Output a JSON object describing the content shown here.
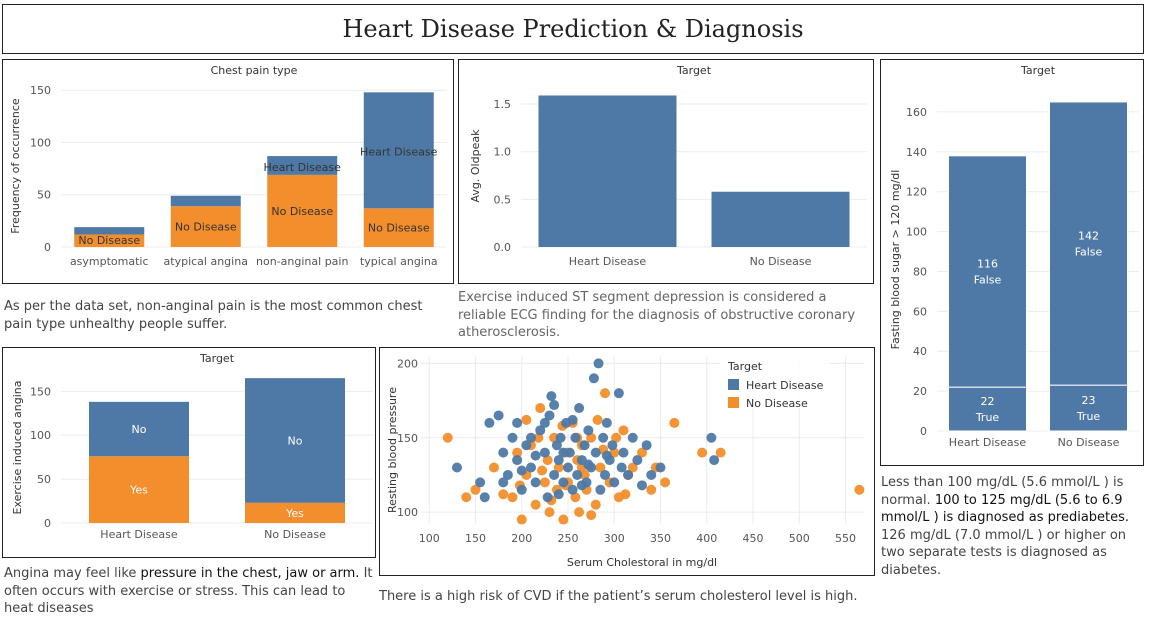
{
  "page": {
    "title": "Heart Disease Prediction & Diagnosis"
  },
  "colors": {
    "heart_disease": "#4e79a7",
    "no_disease": "#f28e2b",
    "grid": "#ececec",
    "axis_text": "#555555"
  },
  "captions": {
    "chest_pain": "As per the data set, non-anginal pain is the most common chest pain type unhealthy people suffer.",
    "oldpeak": "Exercise induced ST segment depression is considered a reliable ECG finding for the diagnosis of obstructive coronary atherosclerosis.",
    "angina_pre": "Angina may feel like ",
    "angina_bold": "pressure in the chest, jaw or arm.",
    "angina_post": " It often occurs with exercise or stress. This can lead to heat diseases",
    "cholesterol": "There is a high risk of CVD if the patient’s serum cholesterol level is high.",
    "sugar_1": "Less than 100 mg/dL (5.6 mmol/L ) is normal. ",
    "sugar_2": "100 to 125 mg/dL (5.6 to 6.9 mmol/L ) is diagnosed as prediabetes.",
    "sugar_3": " 126 mg/dL (7.0 mmol/L ) or higher on two separate tests is diagnosed as diabetes."
  },
  "chart_data": [
    {
      "id": "chest_pain",
      "type": "bar",
      "stacked": true,
      "title": "Chest pain type",
      "ylabel": "Frequency of occurrence",
      "xlabel": "",
      "categories": [
        "asymptomatic",
        "atypical angina",
        "non-anginal pain",
        "typical angina"
      ],
      "series": [
        {
          "name": "No Disease",
          "values": [
            12,
            39,
            69,
            37
          ],
          "labels": [
            "No Disease",
            "No Disease",
            "No Disease",
            "No Disease"
          ]
        },
        {
          "name": "Heart Disease",
          "values": [
            7,
            10,
            18,
            111
          ],
          "labels": [
            "",
            "",
            "Heart Disease",
            "Heart Disease"
          ]
        }
      ],
      "yticks": [
        0,
        50,
        100,
        150
      ],
      "ylim": [
        0,
        155
      ],
      "grid": true
    },
    {
      "id": "oldpeak",
      "type": "bar",
      "title": "Target",
      "ylabel": "Avg. Oldpeak",
      "xlabel": "",
      "categories": [
        "Heart Disease",
        "No Disease"
      ],
      "values": [
        1.59,
        0.58
      ],
      "yticks": [
        0.0,
        0.5,
        1.0,
        1.5
      ],
      "ytick_labels": [
        "0.0",
        "0.5",
        "1.0",
        "1.5"
      ],
      "ylim": [
        0,
        1.7
      ],
      "grid": true
    },
    {
      "id": "sugar",
      "type": "bar",
      "stacked": true,
      "title": "Target",
      "ylabel": "Fasting blood sugar > 120 mg/dl",
      "xlabel": "",
      "categories": [
        "Heart Disease",
        "No Disease"
      ],
      "series": [
        {
          "name": "True",
          "values": [
            22,
            23
          ]
        },
        {
          "name": "False",
          "values": [
            116,
            142
          ]
        }
      ],
      "yticks": [
        0,
        20,
        40,
        60,
        80,
        100,
        120,
        140,
        160
      ],
      "ylim": [
        0,
        172
      ],
      "grid": true
    },
    {
      "id": "angina",
      "type": "bar",
      "stacked": true,
      "title": "Target",
      "ylabel": "Exercise induced angina",
      "xlabel": "",
      "categories": [
        "Heart Disease",
        "No Disease"
      ],
      "series": [
        {
          "name": "Yes",
          "values": [
            76,
            23
          ]
        },
        {
          "name": "No",
          "values": [
            62,
            142
          ]
        }
      ],
      "yticks": [
        0,
        50,
        100,
        150
      ],
      "ylim": [
        0,
        172
      ],
      "grid": true
    },
    {
      "id": "cholesterol",
      "type": "scatter",
      "title": "",
      "xlabel": "Serum Cholestoral in mg/dl",
      "ylabel": "Resting blood pressure",
      "xlim": [
        90,
        570
      ],
      "ylim": [
        92,
        205
      ],
      "xticks": [
        100,
        150,
        200,
        250,
        300,
        350,
        400,
        450,
        500,
        550
      ],
      "yticks": [
        100,
        150,
        200
      ],
      "legend_title": "Target",
      "legend_position": "top-right",
      "grid": true,
      "series": [
        {
          "name": "Heart Disease",
          "points": [
            [
              130,
              130
            ],
            [
              155,
              120
            ],
            [
              160,
              110
            ],
            [
              165,
              160
            ],
            [
              175,
              165
            ],
            [
              180,
              140
            ],
            [
              185,
              125
            ],
            [
              190,
              150
            ],
            [
              195,
              135
            ],
            [
              200,
              115
            ],
            [
              205,
              145
            ],
            [
              210,
              130
            ],
            [
              215,
              120
            ],
            [
              220,
              155
            ],
            [
              225,
              140
            ],
            [
              228,
              110
            ],
            [
              230,
              165
            ],
            [
              232,
              178
            ],
            [
              235,
              125
            ],
            [
              238,
              145
            ],
            [
              240,
              135
            ],
            [
              242,
              150
            ],
            [
              245,
              120
            ],
            [
              248,
              160
            ],
            [
              250,
              130
            ],
            [
              252,
              140
            ],
            [
              255,
              115
            ],
            [
              258,
              150
            ],
            [
              260,
              125
            ],
            [
              262,
              170
            ],
            [
              265,
              135
            ],
            [
              268,
              145
            ],
            [
              270,
              120
            ],
            [
              272,
              155
            ],
            [
              275,
              130
            ],
            [
              278,
              190
            ],
            [
              280,
              140
            ],
            [
              283,
              200
            ],
            [
              285,
              115
            ],
            [
              288,
              150
            ],
            [
              290,
              125
            ],
            [
              292,
              160
            ],
            [
              295,
              135
            ],
            [
              298,
              145
            ],
            [
              300,
              120
            ],
            [
              305,
              180
            ],
            [
              308,
              130
            ],
            [
              310,
              140
            ],
            [
              315,
              125
            ],
            [
              320,
              150
            ],
            [
              325,
              135
            ],
            [
              330,
              118
            ],
            [
              335,
              145
            ],
            [
              340,
              125
            ],
            [
              350,
              130
            ],
            [
              405,
              150
            ],
            [
              408,
              135
            ],
            [
              225,
              160
            ],
            [
              210,
              150
            ],
            [
              245,
              140
            ],
            [
              180,
              120
            ],
            [
              200,
              128
            ],
            [
              265,
              118
            ],
            [
              240,
              112
            ],
            [
              215,
              138
            ],
            [
              272,
              132
            ],
            [
              292,
              138
            ],
            [
              255,
              162
            ],
            [
              195,
              160
            ],
            [
              235,
              172
            ]
          ]
        },
        {
          "name": "No Disease",
          "points": [
            [
              120,
              150
            ],
            [
              140,
              110
            ],
            [
              150,
              115
            ],
            [
              170,
              130
            ],
            [
              180,
              112
            ],
            [
              190,
              110
            ],
            [
              195,
              140
            ],
            [
              200,
              95
            ],
            [
              205,
              125
            ],
            [
              210,
              145
            ],
            [
              215,
              105
            ],
            [
              220,
              170
            ],
            [
              225,
              120
            ],
            [
              228,
              135
            ],
            [
              230,
              100
            ],
            [
              235,
              150
            ],
            [
              238,
              115
            ],
            [
              240,
              130
            ],
            [
              245,
              95
            ],
            [
              248,
              140
            ],
            [
              250,
              120
            ],
            [
              255,
              160
            ],
            [
              258,
              110
            ],
            [
              260,
              135
            ],
            [
              262,
              100
            ],
            [
              265,
              145
            ],
            [
              268,
              125
            ],
            [
              270,
              115
            ],
            [
              275,
              150
            ],
            [
              280,
              105
            ],
            [
              285,
              130
            ],
            [
              290,
              180
            ],
            [
              295,
              120
            ],
            [
              300,
              140
            ],
            [
              305,
              110
            ],
            [
              310,
              155
            ],
            [
              315,
              125
            ],
            [
              320,
              130
            ],
            [
              330,
              140
            ],
            [
              340,
              115
            ],
            [
              345,
              130
            ],
            [
              355,
              120
            ],
            [
              365,
              160
            ],
            [
              395,
              140
            ],
            [
              415,
              140
            ],
            [
              565,
              115
            ],
            [
              205,
              162
            ],
            [
              232,
              108
            ],
            [
              248,
              118
            ],
            [
              222,
              128
            ],
            [
              260,
              150
            ],
            [
              275,
              98
            ],
            [
              302,
              150
            ],
            [
              312,
              112
            ],
            [
              282,
              162
            ],
            [
              218,
              150
            ],
            [
              198,
              118
            ],
            [
              265,
              130
            ],
            [
              288,
              142
            ],
            [
              244,
              158
            ]
          ]
        }
      ]
    }
  ]
}
